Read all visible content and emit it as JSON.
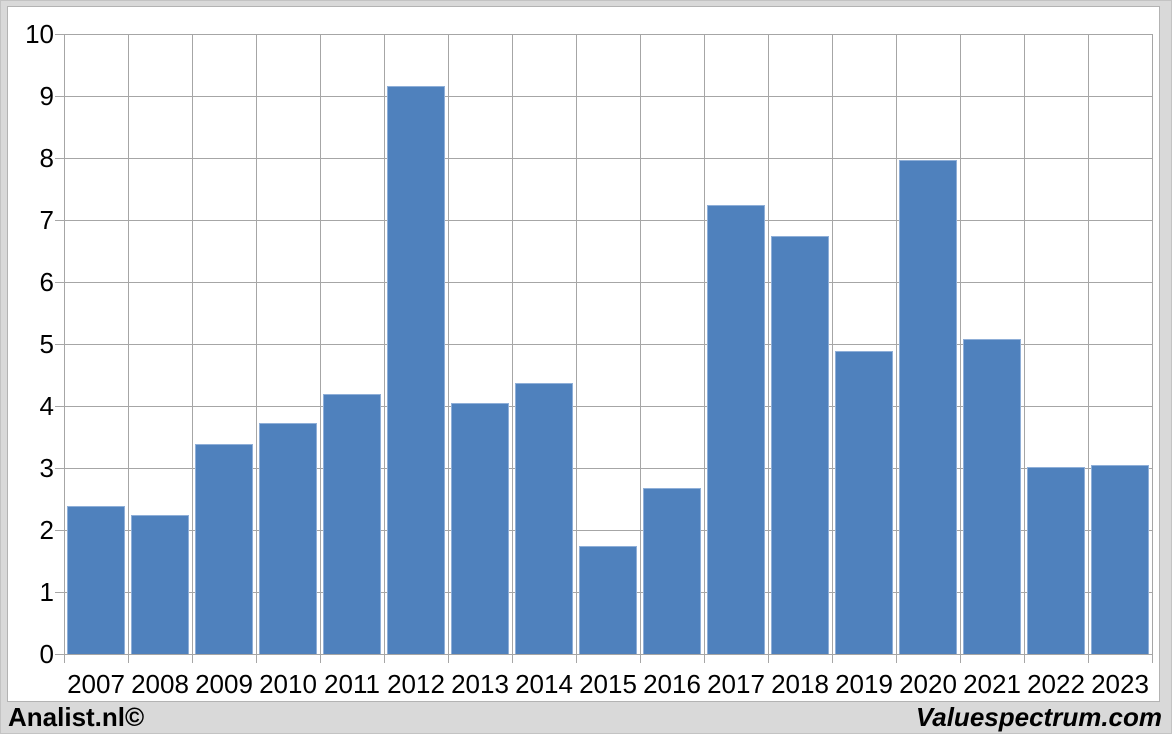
{
  "chart_data": {
    "type": "bar",
    "title": "",
    "xlabel": "",
    "ylabel": "",
    "categories": [
      "2007",
      "2008",
      "2009",
      "2010",
      "2011",
      "2012",
      "2013",
      "2014",
      "2015",
      "2016",
      "2017",
      "2018",
      "2019",
      "2020",
      "2021",
      "2022",
      "2023"
    ],
    "values": [
      2.41,
      2.25,
      3.41,
      3.74,
      4.21,
      9.17,
      4.06,
      4.38,
      1.75,
      2.7,
      7.25,
      6.76,
      4.9,
      7.99,
      5.09,
      3.04,
      3.06
    ],
    "ylim": [
      0,
      10
    ],
    "yticks": [
      0,
      1,
      2,
      3,
      4,
      5,
      6,
      7,
      8,
      9,
      10
    ],
    "grid": true,
    "legend_position": "none",
    "bar_color": "#4f81bd",
    "bar_edge_color": "#8fafd8",
    "gridline_color": "#a6a6a6",
    "plot_background": "#ffffff",
    "canvas_background": "#d9d9d9"
  },
  "footer": {
    "left": "Analist.nl©",
    "right": "Valuespectrum.com"
  }
}
